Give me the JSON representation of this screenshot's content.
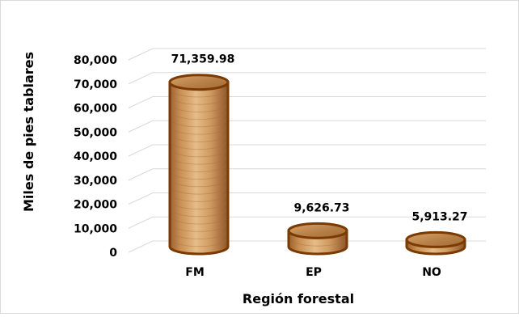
{
  "chart_data": {
    "type": "bar",
    "categories": [
      "FM",
      "EP",
      "NO"
    ],
    "values": [
      71359.98,
      9626.73,
      5913.27
    ],
    "data_labels": [
      "71,359.98",
      "9,626.73",
      "5,913.27"
    ],
    "y_ticks": [
      "0",
      "10,000",
      "20,000",
      "30,000",
      "40,000",
      "50,000",
      "60,000",
      "70,000",
      "80,000"
    ],
    "xlabel": "Región forestal",
    "ylabel": "Miles de pies tablares",
    "ylim": [
      0,
      80000
    ],
    "grid": true,
    "bar_style": "3d-cylinder-wood",
    "colors": {
      "bar_fill": "#c9935a",
      "bar_edge": "#7a3a00",
      "grid": "#d9d9d9"
    }
  }
}
